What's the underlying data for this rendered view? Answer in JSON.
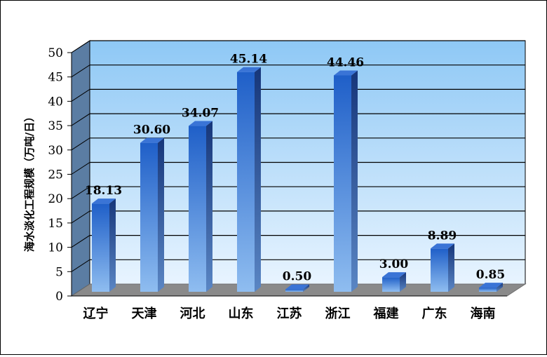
{
  "chart_data": {
    "type": "bar",
    "title": "",
    "xlabel": "",
    "ylabel": "海水淡化工程规模（万吨/日）",
    "categories": [
      "辽宁",
      "天津",
      "河北",
      "山东",
      "江苏",
      "浙江",
      "福建",
      "广东",
      "海南"
    ],
    "series": [
      {
        "values": [
          18.13,
          30.6,
          34.07,
          45.14,
          0.5,
          44.46,
          3.0,
          8.89,
          0.85
        ]
      }
    ],
    "value_labels": [
      "18.13",
      "30.60",
      "34.07",
      "45.14",
      "0.50",
      "44.46",
      "3.00",
      "8.89",
      "0.85"
    ],
    "ylim": [
      0,
      50
    ],
    "yticks": [
      0,
      5,
      10,
      15,
      20,
      25,
      30,
      35,
      40,
      45,
      50
    ],
    "grid": true,
    "legend": "none",
    "style": "3d-column",
    "colors": {
      "bar_top": "#1f5fc8",
      "bar_bottom": "#8fbdf0",
      "bar_side": "#1a3f8a",
      "bar_cap": "#3a74d6",
      "plot_back_top": "#8ec8f5",
      "plot_back_bottom": "#e8f4ff",
      "side_wall": "#5b7da3",
      "floor": "#8a8a8a",
      "floor_edge": "#6d6d6d"
    }
  }
}
